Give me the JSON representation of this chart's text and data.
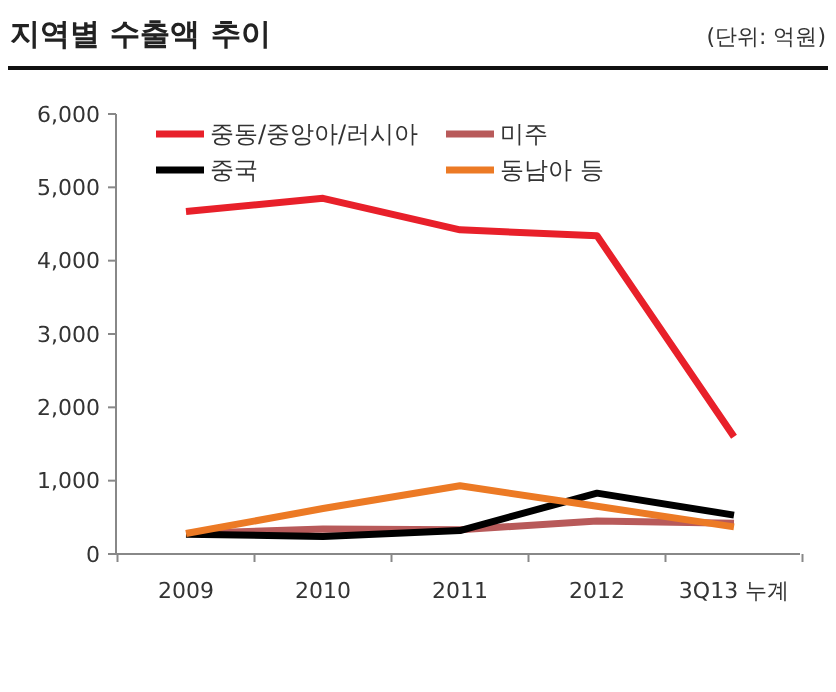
{
  "chart_data": {
    "type": "line",
    "title": "지역별 수출액 추이",
    "subtitle": "(단위: 억원)",
    "categories": [
      "2009",
      "2010",
      "2011",
      "2012",
      "3Q13 누계"
    ],
    "series": [
      {
        "name": "중동/중앙아/러시아",
        "color": "#e8202a",
        "values": [
          4670,
          4850,
          4420,
          4340,
          1600
        ]
      },
      {
        "name": "미주",
        "color": "#b85a5a",
        "values": [
          280,
          340,
          330,
          450,
          420
        ]
      },
      {
        "name": "중국",
        "color": "#000000",
        "values": [
          270,
          240,
          320,
          830,
          530
        ]
      },
      {
        "name": "동남아 등",
        "color": "#ec7a25",
        "values": [
          280,
          620,
          930,
          650,
          370
        ]
      }
    ],
    "ylim": [
      0,
      6000
    ],
    "yticks": [
      {
        "value": 0,
        "label": "0"
      },
      {
        "value": 1000,
        "label": "1,000"
      },
      {
        "value": 2000,
        "label": "2,000"
      },
      {
        "value": 3000,
        "label": "3,000"
      },
      {
        "value": 4000,
        "label": "4,000"
      },
      {
        "value": 5000,
        "label": "5,000"
      },
      {
        "value": 6000,
        "label": "6,000"
      }
    ],
    "grid": false,
    "legend": "top left",
    "marker": "none",
    "line_style": "solid"
  }
}
